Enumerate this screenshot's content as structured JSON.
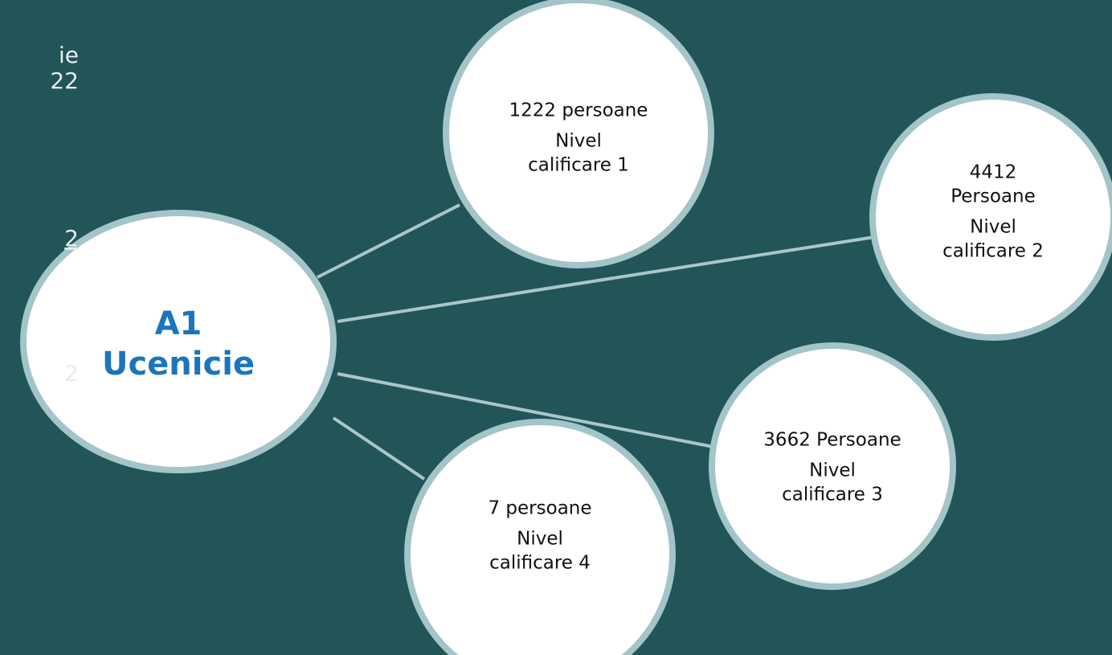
{
  "fragments": [
    "ie",
    "22",
    "2",
    "2"
  ],
  "center": {
    "lines": [
      "A1",
      "Ucenicie"
    ]
  },
  "nodes": [
    {
      "lines": [
        "1222 persoane",
        "Nivel",
        "calificare 1"
      ]
    },
    {
      "lines": [
        "4412",
        "Persoane",
        "Nivel",
        "calificare 2"
      ]
    },
    {
      "lines": [
        "3662 Persoane",
        "Nivel",
        "calificare 3"
      ]
    },
    {
      "lines": [
        "7 persoane",
        "Nivel",
        "calificare 4"
      ]
    }
  ]
}
